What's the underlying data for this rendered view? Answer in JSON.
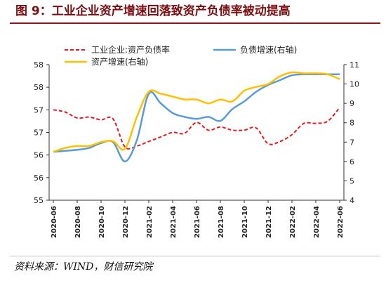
{
  "page": {
    "title": "图 9：工业企业资产增速回落致资产负债率被动提高",
    "source": "资料来源：WIND，财信研究院"
  },
  "colors": {
    "title": "#7a0e10",
    "debt_ratio": "#e31d1d",
    "liability_growth": "#5b9bd5",
    "asset_growth": "#ffc000"
  },
  "chart_data": {
    "type": "line",
    "x": [
      "2020-06",
      "2020-07",
      "2020-08",
      "2020-09",
      "2020-10",
      "2020-11",
      "2020-12",
      "2021-01",
      "2021-02",
      "2021-03",
      "2021-04",
      "2021-05",
      "2021-06",
      "2021-07",
      "2021-08",
      "2021-09",
      "2021-10",
      "2021-11",
      "2021-12",
      "2022-01",
      "2022-02",
      "2022-03",
      "2022-04",
      "2022-05",
      "2022-06"
    ],
    "xticks": [
      "2020-06",
      "2020-08",
      "2020-10",
      "2020-12",
      "2021-02",
      "2021-04",
      "2021-06",
      "2021-08",
      "2021-10",
      "2021-12",
      "2022-02",
      "2022-04",
      "2022-06"
    ],
    "left_axis": {
      "ylim": [
        55,
        58
      ],
      "ticks": [
        "55",
        "56",
        "56",
        "57",
        "57",
        "58",
        "58"
      ]
    },
    "right_axis": {
      "ylim": [
        4,
        11
      ],
      "ticks": [
        "4",
        "5",
        "6",
        "7",
        "8",
        "9",
        "10",
        "11"
      ]
    },
    "series": [
      {
        "name": "工业企业:资产负债率",
        "axis": "left",
        "style": "dashed",
        "values": [
          57.0,
          56.95,
          56.82,
          56.84,
          56.78,
          56.8,
          56.18,
          56.2,
          56.3,
          56.4,
          56.5,
          56.48,
          56.72,
          56.55,
          56.62,
          56.55,
          56.55,
          56.6,
          56.25,
          56.3,
          56.45,
          56.7,
          56.7,
          56.75,
          57.05
        ]
      },
      {
        "name": "负债增速(右轴)",
        "axis": "right",
        "style": "solid",
        "values": [
          6.5,
          6.55,
          6.6,
          6.7,
          6.95,
          7.0,
          6.0,
          7.1,
          9.5,
          9.0,
          8.5,
          8.3,
          8.2,
          8.3,
          8.1,
          8.7,
          9.1,
          9.6,
          9.95,
          10.2,
          10.45,
          10.5,
          10.5,
          10.5,
          10.5
        ]
      },
      {
        "name": "资产增速(右轴)",
        "axis": "right",
        "style": "solid",
        "values": [
          6.5,
          6.7,
          6.8,
          6.8,
          7.0,
          7.05,
          6.65,
          8.3,
          9.6,
          9.5,
          9.35,
          9.2,
          9.2,
          9.0,
          9.2,
          9.1,
          9.65,
          9.85,
          10.0,
          10.4,
          10.6,
          10.55,
          10.55,
          10.5,
          10.25
        ]
      }
    ]
  }
}
